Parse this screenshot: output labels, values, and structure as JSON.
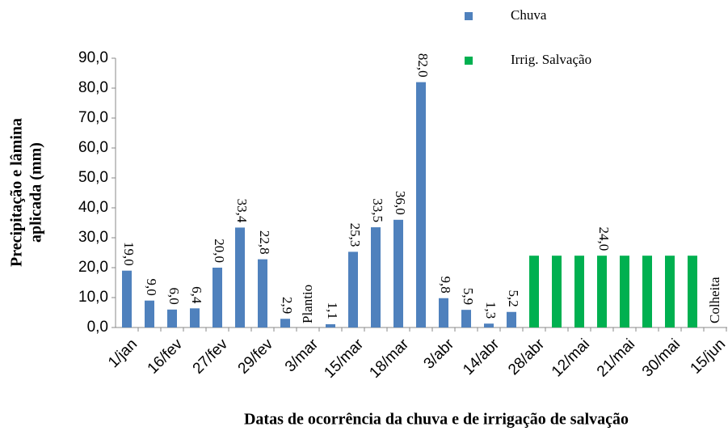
{
  "chart_data": {
    "type": "bar",
    "categories": [
      "1/jan",
      null,
      "16/fev",
      null,
      "27/fev",
      null,
      "29/fev",
      null,
      "3/mar",
      null,
      "15/mar",
      null,
      "18/mar",
      null,
      "3/abr",
      null,
      "14/abr",
      null,
      "28/abr",
      null,
      "12/mai",
      null,
      "21/mai",
      null,
      "30/mai",
      null,
      "15/jun"
    ],
    "series": [
      {
        "name": "Chuva",
        "color": "#4f81bd",
        "values": [
          19.0,
          9.0,
          6.0,
          6.4,
          20.0,
          33.4,
          22.8,
          2.9,
          null,
          1.1,
          25.3,
          33.5,
          36.0,
          82.0,
          9.8,
          5.9,
          1.3,
          5.2,
          null,
          null,
          null,
          null,
          null,
          null,
          null,
          null,
          null
        ],
        "value_labels": [
          "19,0",
          "9,0",
          "6,0",
          "6,4",
          "20,0",
          "33,4",
          "22,8",
          "2,9",
          null,
          "1,1",
          "25,3",
          "33,5",
          "36,0",
          "82,0",
          "9,8",
          "5,9",
          "1,3",
          "5,2",
          null,
          null,
          null,
          null,
          null,
          null,
          null,
          null,
          null
        ]
      },
      {
        "name": "Irrig. Salvação",
        "color": "#00b050",
        "values": [
          null,
          null,
          null,
          null,
          null,
          null,
          null,
          null,
          null,
          null,
          null,
          null,
          null,
          null,
          null,
          null,
          null,
          null,
          24.0,
          24.0,
          24.0,
          24.0,
          24.0,
          24.0,
          24.0,
          24.0,
          null
        ],
        "value_labels": [
          null,
          null,
          null,
          null,
          null,
          null,
          null,
          null,
          null,
          null,
          null,
          null,
          null,
          null,
          null,
          null,
          null,
          null,
          null,
          null,
          null,
          "24,0",
          null,
          null,
          null,
          null,
          null
        ]
      }
    ],
    "annotations": [
      {
        "index": 8,
        "text": "Plantio"
      },
      {
        "index": 26,
        "text": "Colheita"
      }
    ],
    "y_label": [
      "Precipitação e lâmina",
      "aplicada (mm)"
    ],
    "x_label": "Datas de ocorrência da chuva e de irrigação de salvação",
    "ylim": [
      0,
      90
    ],
    "yticks": [
      {
        "value": 0,
        "label": "0,0"
      },
      {
        "value": 10,
        "label": "10,0"
      },
      {
        "value": 20,
        "label": "20,0"
      },
      {
        "value": 30,
        "label": "30,0"
      },
      {
        "value": 40,
        "label": "40,0"
      },
      {
        "value": 50,
        "label": "50,0"
      },
      {
        "value": 60,
        "label": "60,0"
      },
      {
        "value": 70,
        "label": "70,0"
      },
      {
        "value": 80,
        "label": "80,0"
      },
      {
        "value": 90,
        "label": "90,0"
      }
    ]
  }
}
